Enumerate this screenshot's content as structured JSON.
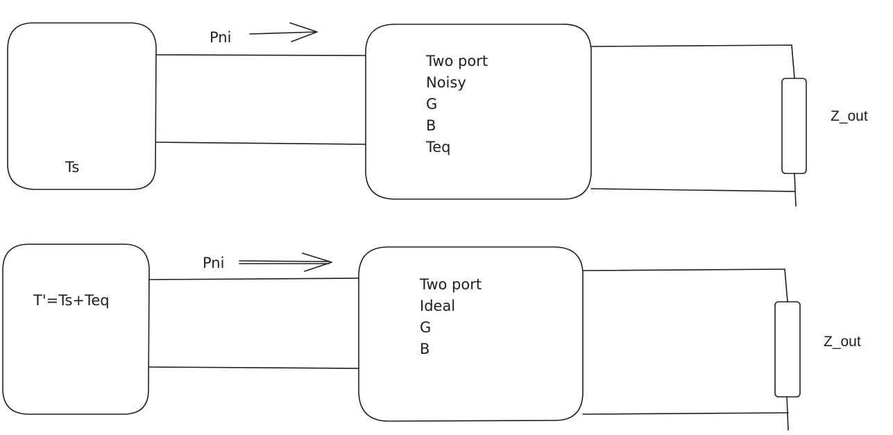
{
  "top_diagram": {
    "source_label": "Ts",
    "power_label": "Pni",
    "two_port_lines": [
      "Two port",
      "Noisy",
      "G",
      "B",
      "Teq"
    ],
    "load_label": "Z_out"
  },
  "bottom_diagram": {
    "source_label": "T'=Ts+Teq",
    "power_label": "Pni",
    "two_port_lines": [
      "Two port",
      "Ideal",
      "G",
      "B"
    ],
    "load_label": "Z_out"
  }
}
